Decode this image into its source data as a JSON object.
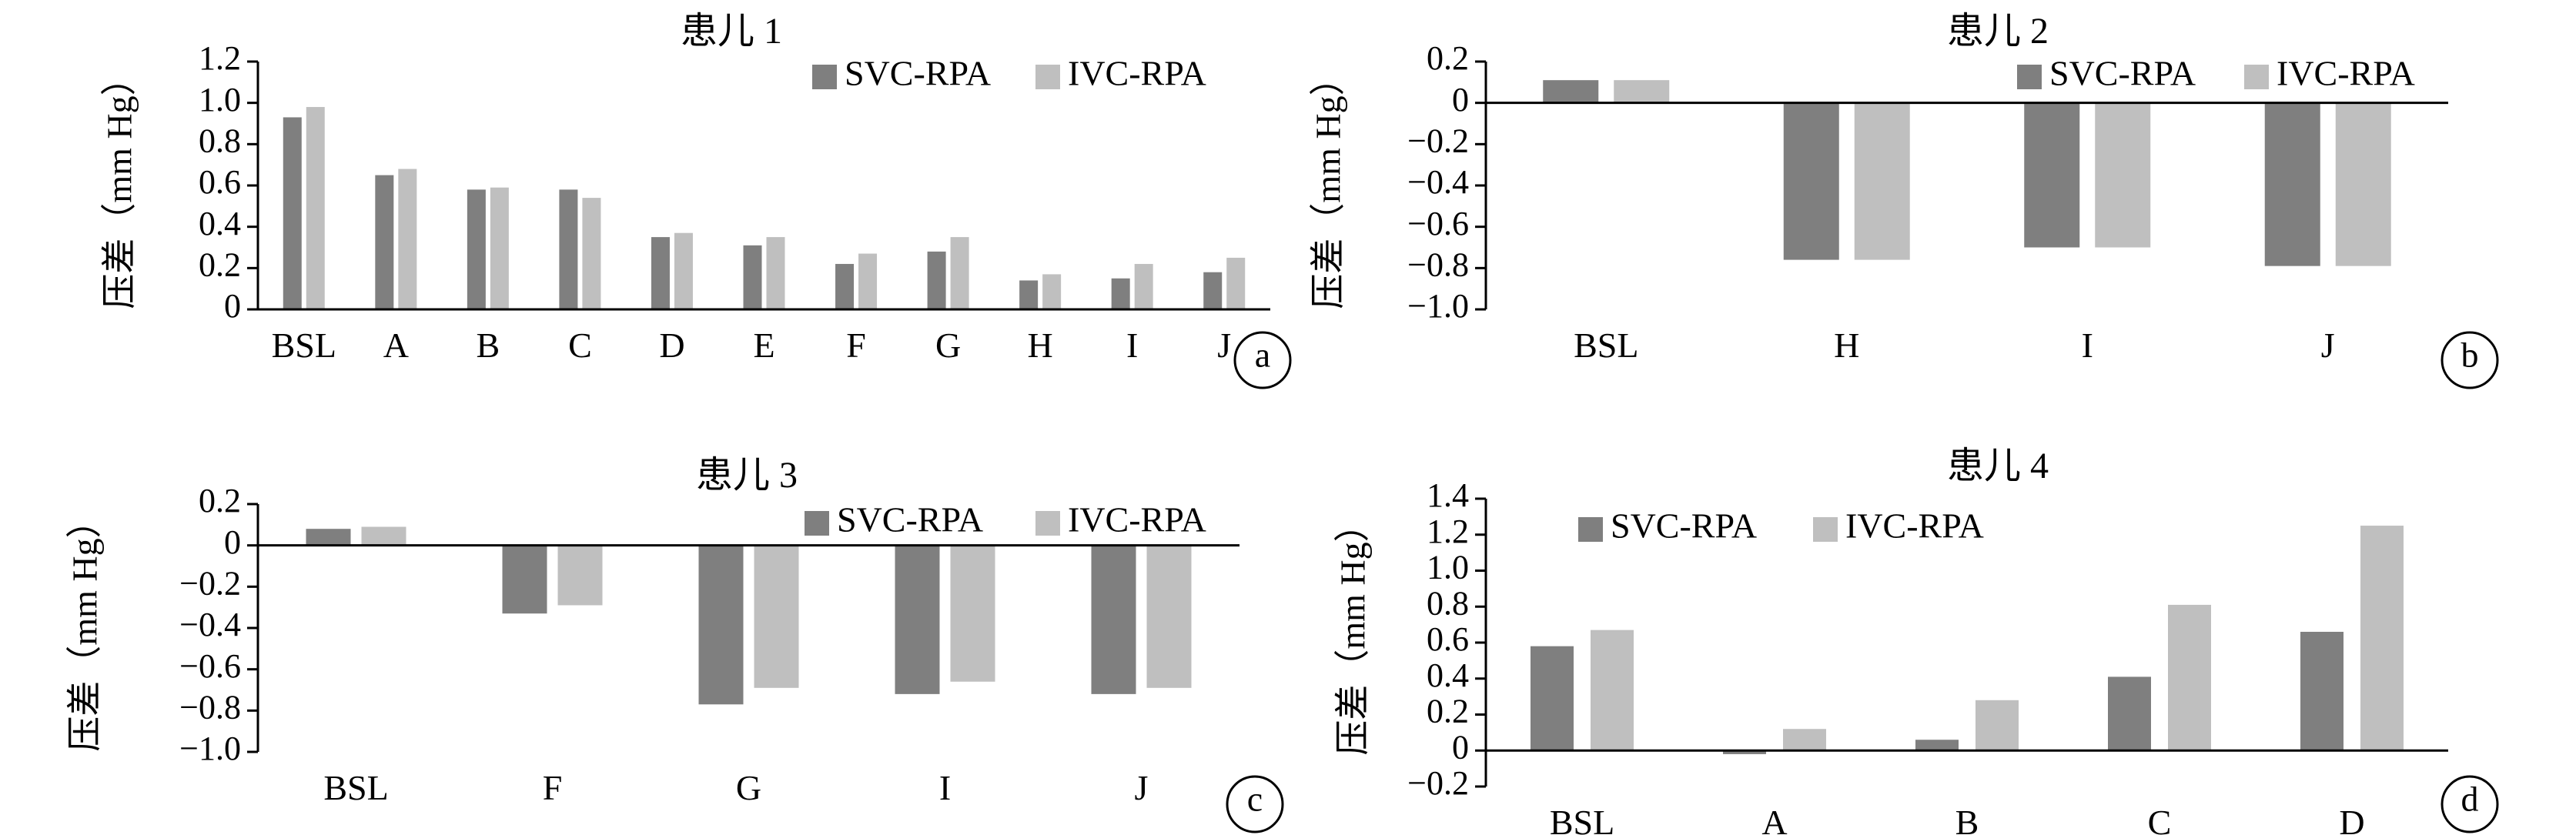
{
  "colors": {
    "svc": "#7f7f7f",
    "ivc": "#bfbfbf",
    "axis": "#000000"
  },
  "chart_data": [
    {
      "type": "bar",
      "title": "患儿 1",
      "ylabel": "压差（mm Hg）",
      "panel_label": "a",
      "categories": [
        "BSL",
        "A",
        "B",
        "C",
        "D",
        "E",
        "F",
        "G",
        "H",
        "I",
        "J"
      ],
      "series": [
        {
          "name": "SVC-RPA",
          "values": [
            0.93,
            0.65,
            0.58,
            0.58,
            0.35,
            0.31,
            0.22,
            0.28,
            0.14,
            0.15,
            0.18
          ]
        },
        {
          "name": "IVC-RPA",
          "values": [
            0.98,
            0.68,
            0.59,
            0.54,
            0.37,
            0.35,
            0.27,
            0.35,
            0.17,
            0.22,
            0.25
          ]
        }
      ],
      "ylim": [
        0,
        1.2
      ],
      "yticks": [
        "1.2",
        "1.0",
        "0.8",
        "0.6",
        "0.4",
        "0.2",
        "0"
      ],
      "ytick_values": [
        1.2,
        1.0,
        0.8,
        0.6,
        0.4,
        0.2,
        0
      ],
      "legend": "top-right"
    },
    {
      "type": "bar",
      "title": "患儿 2",
      "ylabel": "压差（mm Hg）",
      "panel_label": "b",
      "categories": [
        "BSL",
        "H",
        "I",
        "J"
      ],
      "series": [
        {
          "name": "SVC-RPA",
          "values": [
            0.11,
            -0.76,
            -0.7,
            -0.79
          ]
        },
        {
          "name": "IVC-RPA",
          "values": [
            0.11,
            -0.76,
            -0.7,
            -0.79
          ]
        }
      ],
      "ylim": [
        -1.0,
        0.2
      ],
      "yticks": [
        "0.2",
        "0",
        "−0.2",
        "−0.4",
        "−0.6",
        "−0.8",
        "−1.0"
      ],
      "ytick_values": [
        0.2,
        0,
        -0.2,
        -0.4,
        -0.6,
        -0.8,
        -1.0
      ],
      "legend": "top-right"
    },
    {
      "type": "bar",
      "title": "患儿 3",
      "ylabel": "压差（mm Hg）",
      "panel_label": "c",
      "categories": [
        "BSL",
        "F",
        "G",
        "I",
        "J"
      ],
      "series": [
        {
          "name": "SVC-RPA",
          "values": [
            0.08,
            -0.33,
            -0.77,
            -0.72,
            -0.72
          ]
        },
        {
          "name": "IVC-RPA",
          "values": [
            0.09,
            -0.29,
            -0.69,
            -0.66,
            -0.69
          ]
        }
      ],
      "ylim": [
        -1.0,
        0.2
      ],
      "yticks": [
        "0.2",
        "0",
        "−0.2",
        "−0.4",
        "−0.6",
        "−0.8",
        "−1.0"
      ],
      "ytick_values": [
        0.2,
        0,
        -0.2,
        -0.4,
        -0.6,
        -0.8,
        -1.0
      ],
      "legend": "top-right"
    },
    {
      "type": "bar",
      "title": "患儿 4",
      "ylabel": "压差（mm Hg）",
      "panel_label": "d",
      "categories": [
        "BSL",
        "A",
        "B",
        "C",
        "D"
      ],
      "series": [
        {
          "name": "SVC-RPA",
          "values": [
            0.58,
            -0.02,
            0.06,
            0.41,
            0.66
          ]
        },
        {
          "name": "IVC-RPA",
          "values": [
            0.67,
            0.12,
            0.28,
            0.81,
            1.25
          ]
        }
      ],
      "ylim": [
        -0.2,
        1.4
      ],
      "yticks": [
        "1.4",
        "1.2",
        "1.0",
        "0.8",
        "0.6",
        "0.4",
        "0.2",
        "0",
        "−0.2"
      ],
      "ytick_values": [
        1.4,
        1.2,
        1.0,
        0.8,
        0.6,
        0.4,
        0.2,
        0,
        -0.2
      ],
      "legend": "top-left"
    }
  ]
}
